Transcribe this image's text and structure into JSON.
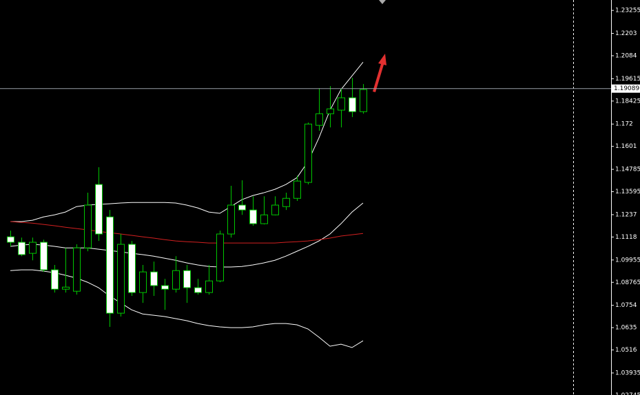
{
  "chart_data": {
    "type": "candlestick",
    "ylim": [
      1.0276,
      1.2381
    ],
    "yticks": [
      1.23255,
      1.2203,
      1.2084,
      1.19615,
      1.18425,
      1.172,
      1.1601,
      1.14785,
      1.13595,
      1.1237,
      1.1118,
      1.09955,
      1.08765,
      1.0754,
      1.0635,
      1.0516,
      1.03935,
      1.02745
    ],
    "current_price": 1.19089,
    "up_color": "#00c800",
    "down_color": "#ffffff",
    "open": [
      1.1119,
      1.109,
      1.1031,
      1.109,
      1.0943,
      1.084,
      1.0829,
      1.106,
      1.1398,
      1.1225,
      1.0712,
      1.1079,
      1.0822,
      1.0932,
      1.0859,
      1.084,
      1.0939,
      1.0848,
      1.0822,
      1.0884,
      1.1134,
      1.1288,
      1.1262,
      1.1189,
      1.1236,
      1.128,
      1.1324,
      1.1409,
      1.1713,
      1.1775,
      1.1794,
      1.186,
      1.1786
    ],
    "high": [
      1.1152,
      1.1115,
      1.1115,
      1.1104,
      1.0969,
      1.106,
      1.1079,
      1.1354,
      1.149,
      1.1262,
      1.1134,
      1.1097,
      1.0969,
      1.0987,
      1.0895,
      1.1016,
      1.0969,
      1.0895,
      1.0969,
      1.1152,
      1.1391,
      1.142,
      1.1335,
      1.1335,
      1.1335,
      1.1354,
      1.1445,
      1.1728,
      1.1911,
      1.1922,
      1.1911,
      1.1966,
      1.1933
    ],
    "low": [
      1.1068,
      1.1016,
      1.0994,
      1.0932,
      1.0822,
      1.0822,
      1.0811,
      1.1042,
      1.1097,
      1.0639,
      1.0694,
      1.0804,
      1.0767,
      1.0804,
      1.073,
      1.0822,
      1.0767,
      1.0811,
      1.0811,
      1.0877,
      1.1115,
      1.1236,
      1.1178,
      1.1185,
      1.1233,
      1.1262,
      1.131,
      1.1398,
      1.1684,
      1.1702,
      1.1702,
      1.1757,
      1.1775
    ],
    "close": [
      1.109,
      1.1024,
      1.109,
      1.0943,
      1.084,
      1.0851,
      1.106,
      1.1288,
      1.1134,
      1.0712,
      1.1079,
      1.0822,
      1.0932,
      1.0859,
      1.084,
      1.0939,
      1.0848,
      1.0822,
      1.0884,
      1.1134,
      1.1288,
      1.1262,
      1.1189,
      1.1236,
      1.1288,
      1.1324,
      1.1416,
      1.172,
      1.1775,
      1.1801,
      1.186,
      1.1786,
      1.1904
    ],
    "lines": [
      {
        "color": "#ffffff",
        "values": [
          1.12,
          1.12,
          1.1207,
          1.1225,
          1.1236,
          1.1251,
          1.128,
          1.1288,
          1.1292,
          1.1295,
          1.1299,
          1.1302,
          1.1302,
          1.1302,
          1.1302,
          1.1299,
          1.1288,
          1.1273,
          1.1251,
          1.1244,
          1.128,
          1.1317,
          1.1339,
          1.1354,
          1.1372,
          1.1398,
          1.1434,
          1.1519,
          1.1647,
          1.1794,
          1.1904,
          1.1977,
          1.205
        ]
      },
      {
        "color": "#ffffff",
        "values": [
          1.1068,
          1.1075,
          1.1079,
          1.1075,
          1.1068,
          1.106,
          1.106,
          1.106,
          1.1053,
          1.1046,
          1.1039,
          1.1031,
          1.1024,
          1.1016,
          1.1005,
          1.0994,
          1.098,
          1.0969,
          1.0961,
          1.0958,
          1.0958,
          1.0961,
          1.0969,
          1.098,
          1.0994,
          1.1016,
          1.1042,
          1.1068,
          1.1097,
          1.1134,
          1.1189,
          1.1251,
          1.1299
        ]
      },
      {
        "color": "#ffffff",
        "values": [
          1.0939,
          1.0943,
          1.0943,
          1.0936,
          1.0928,
          1.0914,
          1.0899,
          1.0877,
          1.0848,
          1.0804,
          1.0767,
          1.073,
          1.0708,
          1.0701,
          1.0694,
          1.0683,
          1.0672,
          1.0657,
          1.0646,
          1.0639,
          1.0635,
          1.0635,
          1.0639,
          1.065,
          1.0657,
          1.0657,
          1.065,
          1.0628,
          1.0584,
          1.0536,
          1.0547,
          1.0529,
          1.0565
        ]
      },
      {
        "color": "#d42020",
        "values": [
          1.12,
          1.1196,
          1.1192,
          1.1185,
          1.1178,
          1.117,
          1.1163,
          1.1156,
          1.1148,
          1.1141,
          1.1134,
          1.1127,
          1.1119,
          1.1112,
          1.1104,
          1.1097,
          1.1093,
          1.109,
          1.1086,
          1.1086,
          1.1086,
          1.1086,
          1.1086,
          1.1086,
          1.1086,
          1.109,
          1.1093,
          1.1097,
          1.1104,
          1.1112,
          1.1123,
          1.113,
          1.1137
        ]
      }
    ]
  }
}
